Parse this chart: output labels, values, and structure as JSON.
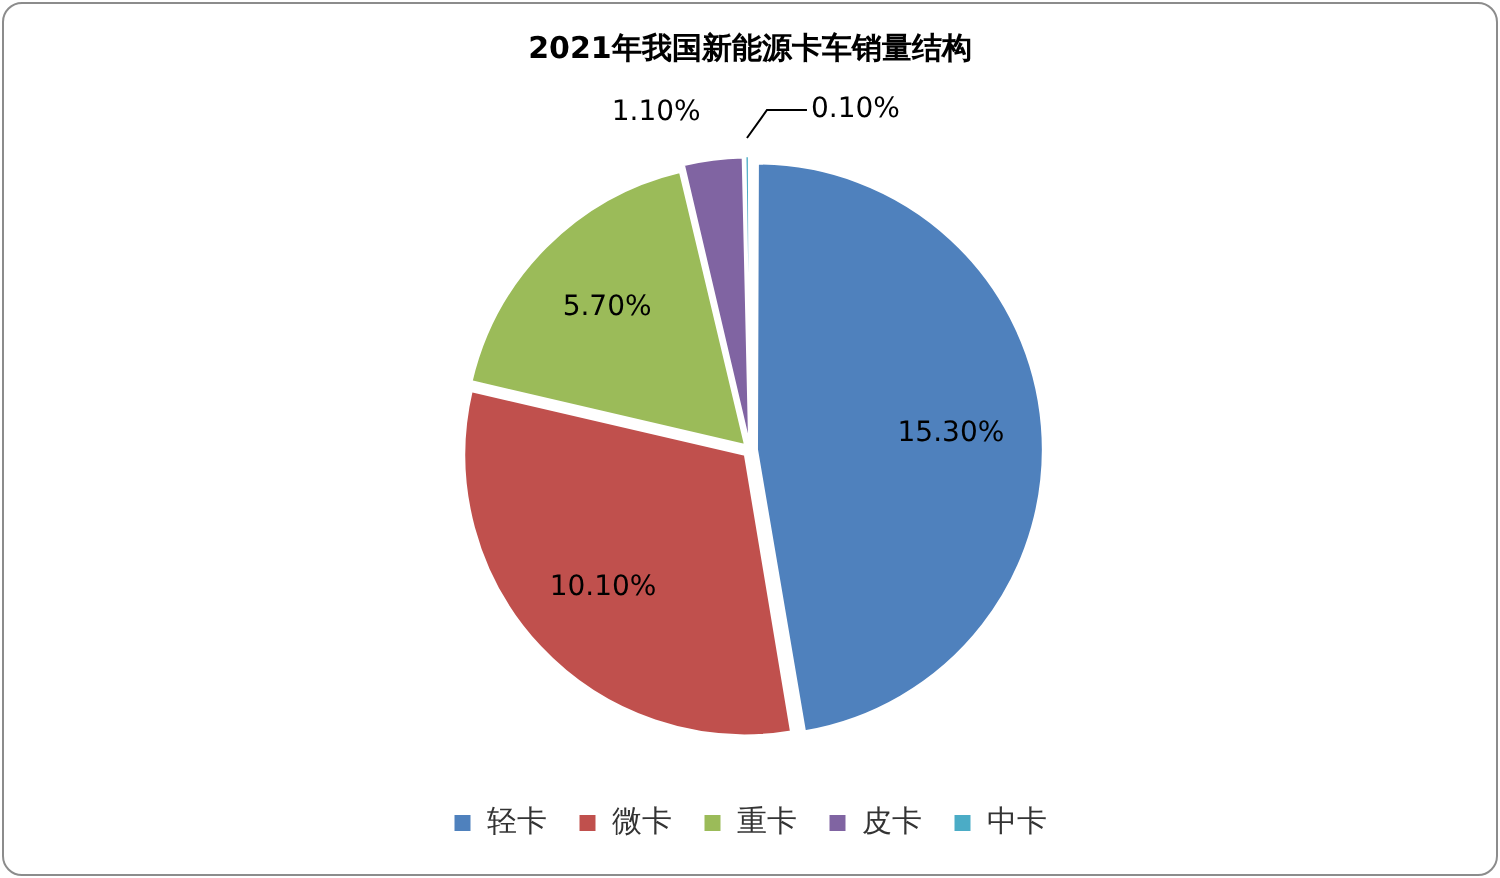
{
  "chart_data": {
    "type": "pie",
    "title": "2021年我国新能源卡车销量结构",
    "categories": [
      "轻卡",
      "微卡",
      "重卡",
      "皮卡",
      "中卡"
    ],
    "values": [
      15.3,
      10.1,
      5.7,
      1.1,
      0.1
    ],
    "value_labels": [
      "15.30%",
      "10.10%",
      "5.70%",
      "1.10%",
      "0.10%"
    ],
    "colors": [
      "#4f81bd",
      "#c0504d",
      "#9bbb59",
      "#8064a2",
      "#4bacc6"
    ],
    "legend": "bottom"
  }
}
